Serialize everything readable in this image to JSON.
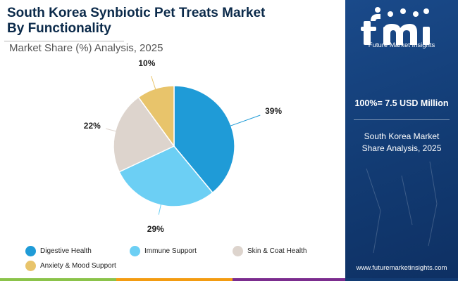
{
  "header": {
    "title_line1": "South Korea Synbiotic Pet Treats Market",
    "title_line2": "By Functionality",
    "subtitle": "Market Share (%) Analysis, 2025"
  },
  "chart_data": {
    "type": "pie",
    "title": "",
    "unit": "%",
    "slices": [
      {
        "label": "Digestive Health",
        "value": 39,
        "display": "39%",
        "color": "#1f9bd7"
      },
      {
        "label": "Immune Support",
        "value": 29,
        "display": "29%",
        "color": "#6ccff4"
      },
      {
        "label": "Skin & Coat Health",
        "value": 22,
        "display": "22%",
        "color": "#ddd4cd"
      },
      {
        "label": "Anxiety & Mood Support",
        "value": 10,
        "display": "10%",
        "color": "#e8c46b"
      }
    ],
    "legend_position": "bottom"
  },
  "legend": [
    {
      "label": "Digestive Health",
      "color": "#1f9bd7"
    },
    {
      "label": "Immune Support",
      "color": "#6ccff4"
    },
    {
      "label": "Skin & Coat Health",
      "color": "#ddd4cd"
    },
    {
      "label": "Anxiety & Mood Support",
      "color": "#e8c46b"
    }
  ],
  "sidebar": {
    "logo_text": "fmi",
    "logo_tagline": "Future Market Insights",
    "total": "100%= 7.5 USD Million",
    "description": "South Korea Market Share Analysis, 2025",
    "website": "www.futuremarketinsights.com"
  },
  "colors": {
    "brand_blue": "#123b73",
    "title_navy": "#0b2a4a",
    "bar_green": "#8bc34a",
    "bar_orange": "#f39c12",
    "bar_purple": "#7b2d8e"
  }
}
